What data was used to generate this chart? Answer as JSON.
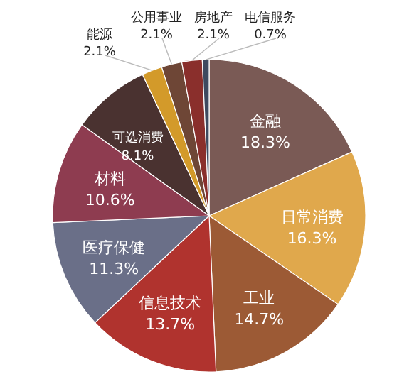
{
  "chart_data": {
    "type": "pie",
    "categories": [
      "金融",
      "日常消费",
      "工业",
      "信息技术",
      "医疗保健",
      "材料",
      "可选消费",
      "能源",
      "公用事业",
      "房地产",
      "电信服务"
    ],
    "values": [
      18.3,
      16.3,
      14.7,
      13.7,
      11.3,
      10.6,
      8.1,
      2.1,
      2.1,
      2.1,
      0.7
    ],
    "colors": [
      "#7a5a55",
      "#e0a84c",
      "#9c5a35",
      "#b0332e",
      "#6a6f88",
      "#8e3c50",
      "#4a3230",
      "#d39a2a",
      "#6e4636",
      "#8a2f2c",
      "#3e4a60"
    ],
    "value_labels": [
      "18.3%",
      "16.3%",
      "14.7%",
      "13.7%",
      "11.3%",
      "10.6%",
      "8.1%",
      "2.1%",
      "2.1%",
      "2.1%",
      "0.7%"
    ],
    "legend": false
  }
}
